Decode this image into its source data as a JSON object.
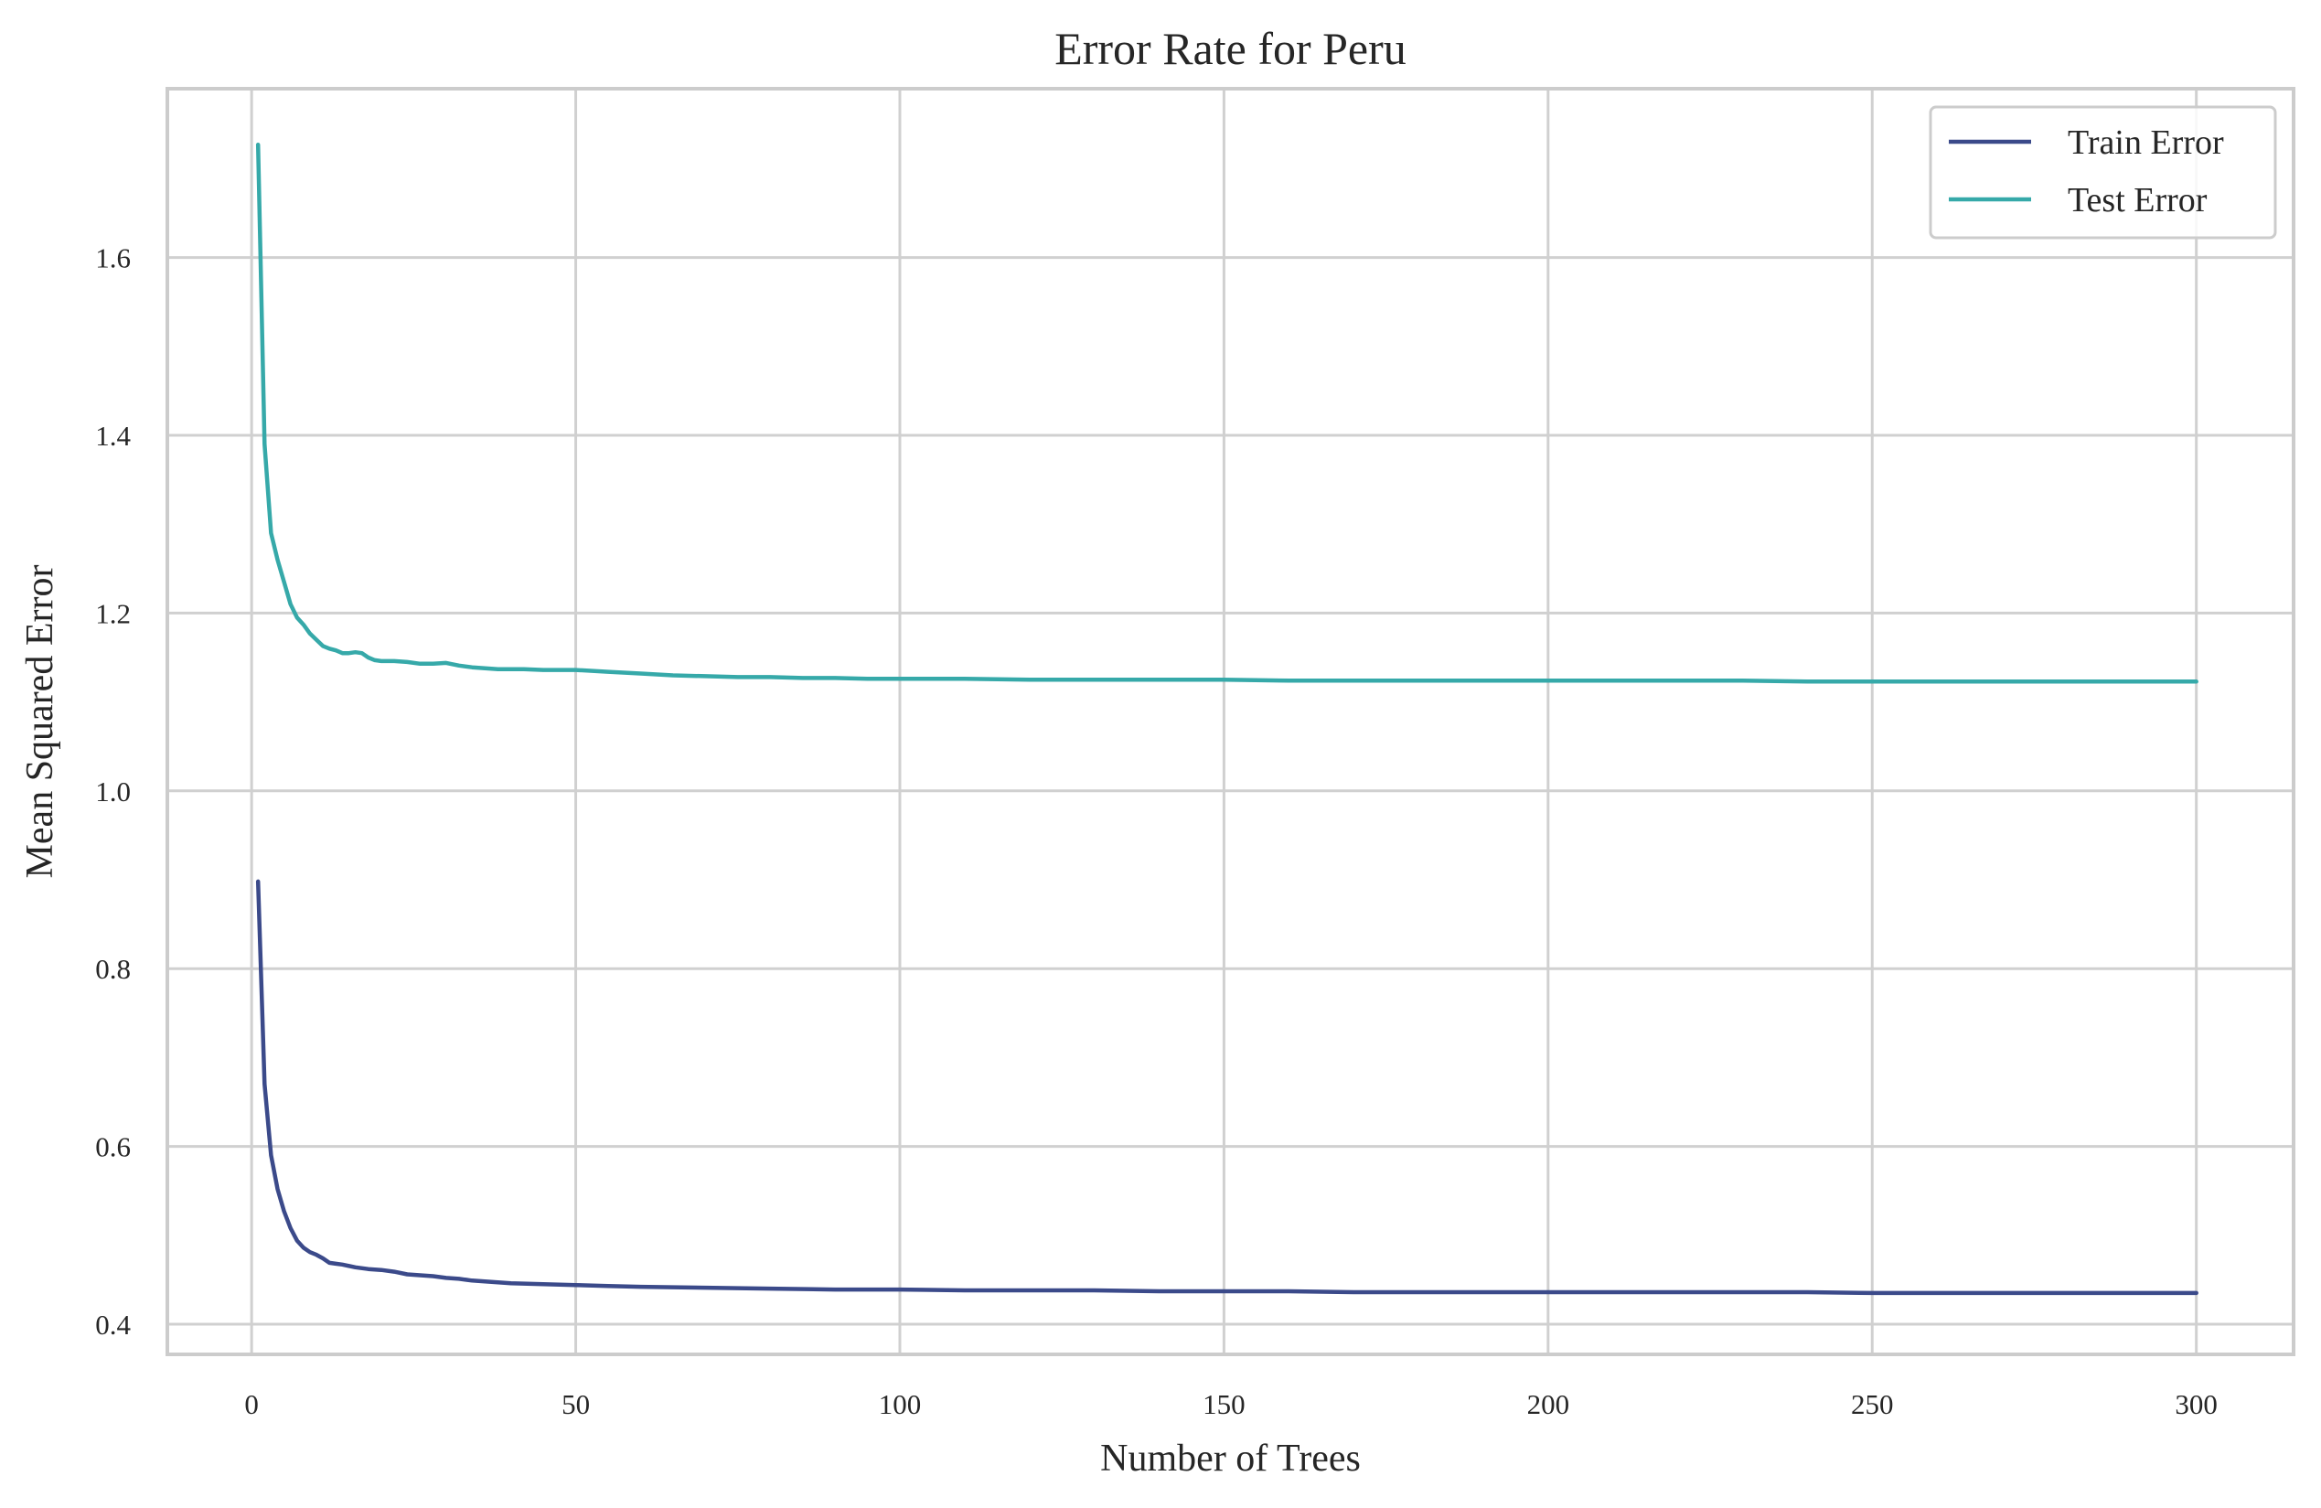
{
  "chart_data": {
    "type": "line",
    "title": "Error Rate for Peru",
    "xlabel": "Number of Trees",
    "ylabel": "Mean Squared Error",
    "xlim": [
      -13,
      315
    ],
    "ylim": [
      0.366,
      1.79
    ],
    "xticks": [
      0,
      50,
      100,
      150,
      200,
      250,
      300
    ],
    "yticks": [
      0.4,
      0.6,
      0.8,
      1.0,
      1.2,
      1.4,
      1.6
    ],
    "xtick_labels": [
      "0",
      "50",
      "100",
      "150",
      "200",
      "250",
      "300"
    ],
    "ytick_labels": [
      "0.4",
      "0.6",
      "0.8",
      "1.0",
      "1.2",
      "1.4",
      "1.6"
    ],
    "grid": true,
    "legend_position": "top-right",
    "series": [
      {
        "name": "Train Error",
        "color": "#3b4a8a",
        "points": [
          [
            1,
            0.898
          ],
          [
            2,
            0.67
          ],
          [
            3,
            0.59
          ],
          [
            4,
            0.552
          ],
          [
            5,
            0.527
          ],
          [
            6,
            0.508
          ],
          [
            7,
            0.494
          ],
          [
            8,
            0.486
          ],
          [
            9,
            0.481
          ],
          [
            10,
            0.478
          ],
          [
            11,
            0.474
          ],
          [
            12,
            0.469
          ],
          [
            13,
            0.468
          ],
          [
            14,
            0.467
          ],
          [
            16,
            0.464
          ],
          [
            18,
            0.462
          ],
          [
            20,
            0.461
          ],
          [
            22,
            0.459
          ],
          [
            24,
            0.456
          ],
          [
            26,
            0.455
          ],
          [
            28,
            0.454
          ],
          [
            30,
            0.452
          ],
          [
            32,
            0.451
          ],
          [
            34,
            0.449
          ],
          [
            36,
            0.448
          ],
          [
            38,
            0.447
          ],
          [
            40,
            0.446
          ],
          [
            45,
            0.445
          ],
          [
            50,
            0.444
          ],
          [
            55,
            0.443
          ],
          [
            60,
            0.442
          ],
          [
            70,
            0.441
          ],
          [
            80,
            0.44
          ],
          [
            90,
            0.439
          ],
          [
            100,
            0.439
          ],
          [
            110,
            0.438
          ],
          [
            120,
            0.438
          ],
          [
            130,
            0.438
          ],
          [
            140,
            0.437
          ],
          [
            150,
            0.437
          ],
          [
            160,
            0.437
          ],
          [
            170,
            0.436
          ],
          [
            180,
            0.436
          ],
          [
            190,
            0.436
          ],
          [
            200,
            0.436
          ],
          [
            210,
            0.436
          ],
          [
            220,
            0.436
          ],
          [
            230,
            0.436
          ],
          [
            240,
            0.436
          ],
          [
            250,
            0.435
          ],
          [
            260,
            0.435
          ],
          [
            270,
            0.435
          ],
          [
            280,
            0.435
          ],
          [
            290,
            0.435
          ],
          [
            300,
            0.435
          ]
        ]
      },
      {
        "name": "Test Error",
        "color": "#36a9a9",
        "points": [
          [
            1,
            1.727
          ],
          [
            2,
            1.39
          ],
          [
            3,
            1.29
          ],
          [
            4,
            1.26
          ],
          [
            5,
            1.235
          ],
          [
            6,
            1.21
          ],
          [
            7,
            1.195
          ],
          [
            8,
            1.187
          ],
          [
            9,
            1.177
          ],
          [
            10,
            1.17
          ],
          [
            11,
            1.163
          ],
          [
            12,
            1.16
          ],
          [
            13,
            1.158
          ],
          [
            14,
            1.155
          ],
          [
            15,
            1.155
          ],
          [
            16,
            1.156
          ],
          [
            17,
            1.155
          ],
          [
            18,
            1.15
          ],
          [
            19,
            1.147
          ],
          [
            20,
            1.146
          ],
          [
            22,
            1.146
          ],
          [
            24,
            1.145
          ],
          [
            26,
            1.143
          ],
          [
            28,
            1.143
          ],
          [
            30,
            1.144
          ],
          [
            32,
            1.141
          ],
          [
            34,
            1.139
          ],
          [
            36,
            1.138
          ],
          [
            38,
            1.137
          ],
          [
            40,
            1.137
          ],
          [
            42,
            1.137
          ],
          [
            45,
            1.136
          ],
          [
            48,
            1.136
          ],
          [
            50,
            1.136
          ],
          [
            55,
            1.134
          ],
          [
            60,
            1.132
          ],
          [
            65,
            1.13
          ],
          [
            70,
            1.129
          ],
          [
            75,
            1.128
          ],
          [
            80,
            1.128
          ],
          [
            85,
            1.127
          ],
          [
            90,
            1.127
          ],
          [
            95,
            1.126
          ],
          [
            100,
            1.126
          ],
          [
            110,
            1.126
          ],
          [
            120,
            1.125
          ],
          [
            130,
            1.125
          ],
          [
            140,
            1.125
          ],
          [
            150,
            1.125
          ],
          [
            160,
            1.124
          ],
          [
            170,
            1.124
          ],
          [
            180,
            1.124
          ],
          [
            190,
            1.124
          ],
          [
            200,
            1.124
          ],
          [
            210,
            1.124
          ],
          [
            220,
            1.124
          ],
          [
            230,
            1.124
          ],
          [
            240,
            1.123
          ],
          [
            250,
            1.123
          ],
          [
            260,
            1.123
          ],
          [
            270,
            1.123
          ],
          [
            280,
            1.123
          ],
          [
            290,
            1.123
          ],
          [
            300,
            1.123
          ]
        ]
      }
    ]
  }
}
